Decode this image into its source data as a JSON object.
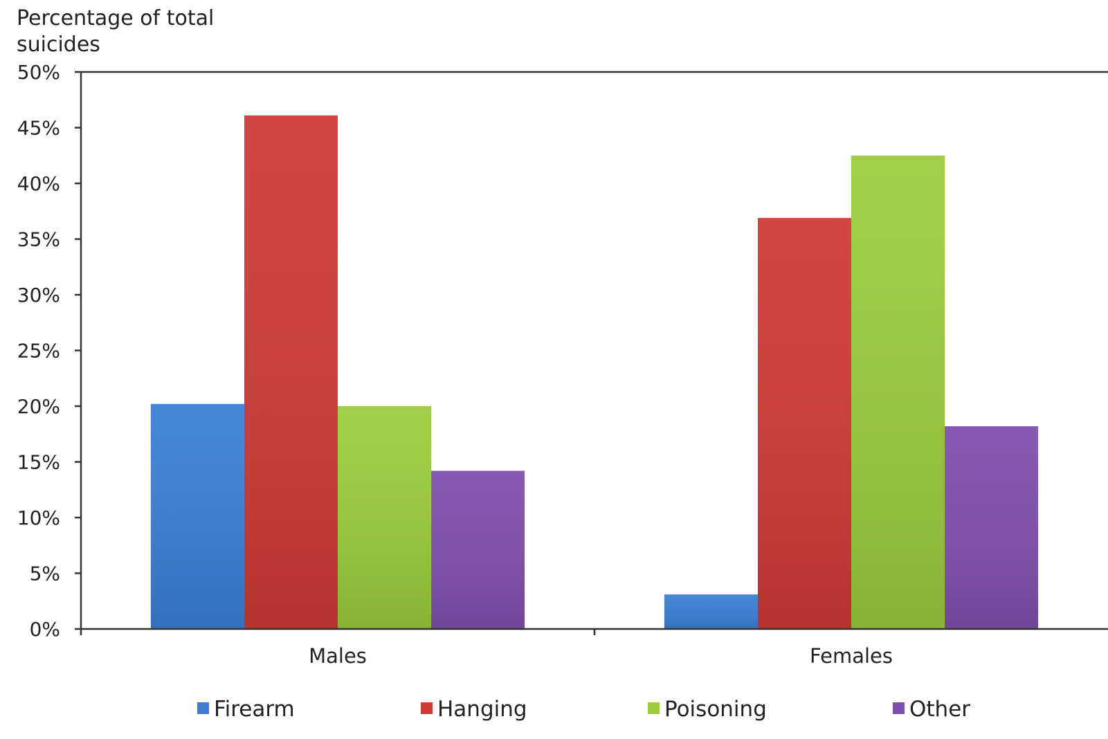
{
  "chart_data": {
    "type": "bar",
    "title": "",
    "xlabel": "",
    "ylabel_lines": [
      "Percentage of total",
      "suicides"
    ],
    "categories": [
      "Males",
      "Females"
    ],
    "series": [
      {
        "name": "Firearm",
        "values": [
          20.2,
          3.1
        ],
        "color": "#3a7fd5"
      },
      {
        "name": "Hanging",
        "values": [
          46.1,
          36.9
        ],
        "color": "#d03a35"
      },
      {
        "name": "Poisoning",
        "values": [
          20.0,
          42.5
        ],
        "color": "#9ccb3c"
      },
      {
        "name": "Other",
        "values": [
          14.2,
          18.2
        ],
        "color": "#7f4fae"
      }
    ],
    "ylim": [
      0,
      50
    ],
    "yticks": [
      "0%",
      "5%",
      "10%",
      "15%",
      "20%",
      "25%",
      "30%",
      "35%",
      "40%",
      "45%",
      "50%"
    ],
    "ytick_values": [
      0,
      5,
      10,
      15,
      20,
      25,
      30,
      35,
      40,
      45,
      50
    ],
    "grid": false,
    "legend_position": "bottom"
  }
}
